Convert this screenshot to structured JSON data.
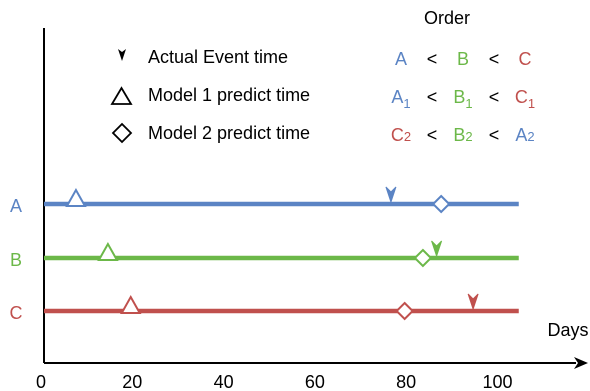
{
  "x_axis": {
    "label": "Days",
    "ticks": [
      0,
      20,
      40,
      60,
      80,
      100
    ],
    "range": [
      0,
      120
    ]
  },
  "legend": {
    "actual": "Actual Event time",
    "model1": "Model 1 predict time",
    "model2": "Model 2 predict time"
  },
  "order": {
    "title": "Order",
    "lt": "<",
    "rows": [
      [
        {
          "base": "A",
          "sub": "",
          "color": "#5b84c4"
        },
        {
          "base": "B",
          "sub": "",
          "color": "#6cb849"
        },
        {
          "base": "C",
          "sub": "",
          "color": "#c0504d"
        }
      ],
      [
        {
          "base": "A",
          "sub": "1",
          "color": "#5b84c4"
        },
        {
          "base": "B",
          "sub": "1",
          "color": "#6cb849"
        },
        {
          "base": "C",
          "sub": "1",
          "color": "#c0504d"
        }
      ],
      [
        {
          "base": "C",
          "sub": "2",
          "color": "#c0504d"
        },
        {
          "base": "B",
          "sub": "2",
          "color": "#6cb849"
        },
        {
          "base": "A",
          "sub": "2",
          "color": "#5b84c4"
        }
      ]
    ]
  },
  "subjects": [
    {
      "name": "A",
      "color": "#5b84c4",
      "line_end": 104,
      "actual": 76,
      "model1": 7,
      "model2": 87
    },
    {
      "name": "B",
      "color": "#6cb849",
      "line_end": 104,
      "actual": 86,
      "model1": 14,
      "model2": 83
    },
    {
      "name": "C",
      "color": "#c0504d",
      "line_end": 104,
      "actual": 94,
      "model1": 19,
      "model2": 79
    }
  ]
}
